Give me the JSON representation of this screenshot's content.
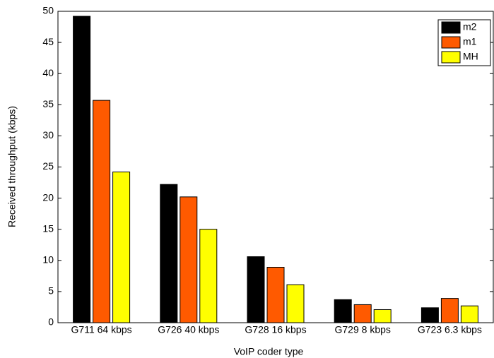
{
  "chart_data": {
    "type": "bar",
    "x_label": "VoIP coder type",
    "y_label": "Received throughput (kbps)",
    "categories": [
      "G711 64 kbps",
      "G726 40 kbps",
      "G728 16 kbps",
      "G729 8 kbps",
      "G723 6.3 kbps"
    ],
    "series": [
      {
        "name": "m2",
        "color": "#000000",
        "values": [
          49.2,
          22.2,
          10.6,
          3.7,
          2.4
        ]
      },
      {
        "name": "m1",
        "color": "#ff5a00",
        "values": [
          35.7,
          20.2,
          8.9,
          2.9,
          3.9
        ]
      },
      {
        "name": "MH",
        "color": "#ffff00",
        "values": [
          24.2,
          15.0,
          6.1,
          2.1,
          2.7
        ]
      }
    ],
    "ylim": [
      0,
      50
    ],
    "yticks": [
      0,
      5,
      10,
      15,
      20,
      25,
      30,
      35,
      40,
      45,
      50
    ],
    "grid": false,
    "legend": "upper right"
  }
}
